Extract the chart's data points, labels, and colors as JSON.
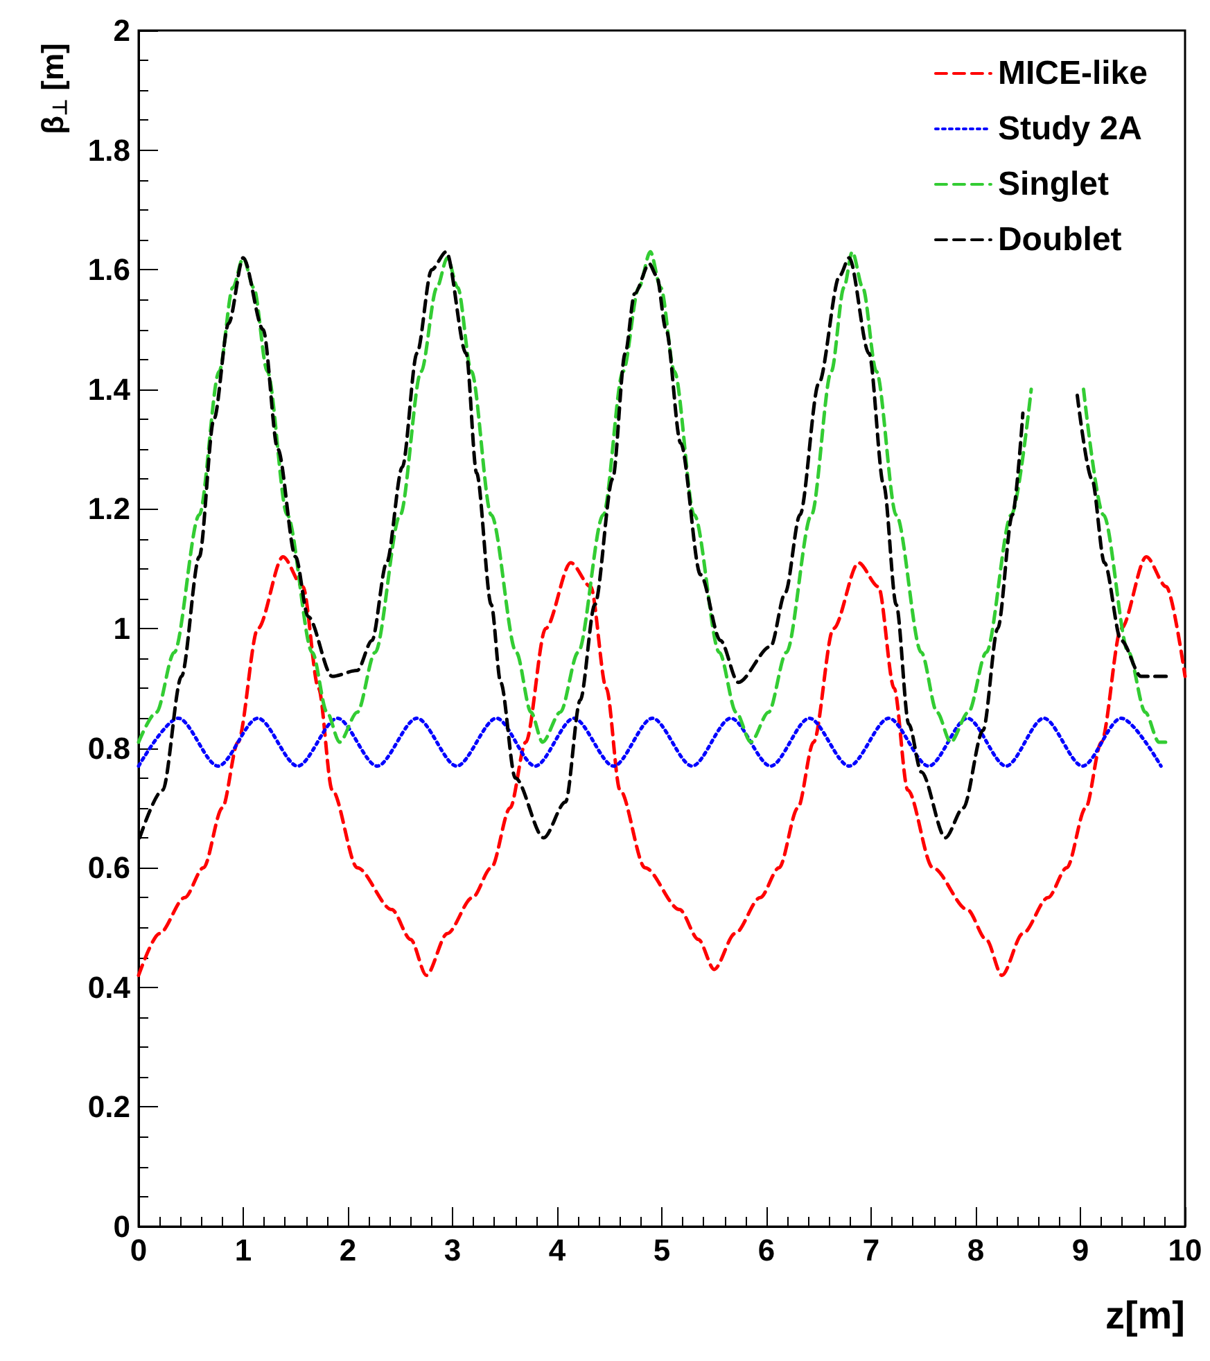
{
  "chart_data": {
    "type": "line",
    "xlabel": "z[m]",
    "ylabel": "β$_{⊥}$ [m]",
    "xlim": [
      0,
      10
    ],
    "xticks": [
      0,
      1,
      2,
      3,
      4,
      5,
      6,
      7,
      8,
      9,
      10
    ],
    "ylim": [
      0,
      2
    ],
    "yticks": [
      0,
      0.2,
      0.4,
      0.6,
      0.8,
      1,
      1.2,
      1.4,
      1.6,
      1.8,
      2
    ],
    "grid": false,
    "legend": "top right",
    "marker": "none",
    "series": [
      {
        "name": "MICE-like",
        "color": "#ff0000",
        "line_style": "dashed",
        "x": [
          0,
          0.2,
          0.44,
          0.62,
          0.8,
          0.95,
          1.14,
          1.38,
          1.57,
          1.72,
          1.85,
          2.09,
          2.42,
          2.6,
          2.75,
          2.95,
          3.19,
          3.37,
          3.55,
          3.7,
          3.89,
          4.13,
          4.32,
          4.47,
          4.6,
          4.84,
          5.17,
          5.35,
          5.5,
          5.7,
          5.94,
          6.12,
          6.3,
          6.45,
          6.64,
          6.88,
          7.07,
          7.22,
          7.35,
          7.59,
          7.92,
          8.1,
          8.25,
          8.45,
          8.69,
          8.87,
          9.05,
          9.2,
          9.39,
          9.63,
          9.82,
          10
        ],
        "values": [
          0.42,
          0.49,
          0.55,
          0.6,
          0.7,
          0.81,
          1.0,
          1.12,
          1.07,
          0.9,
          0.73,
          0.6,
          0.53,
          0.48,
          0.42,
          0.49,
          0.55,
          0.6,
          0.7,
          0.81,
          1.0,
          1.11,
          1.07,
          0.9,
          0.73,
          0.6,
          0.53,
          0.48,
          0.43,
          0.49,
          0.55,
          0.6,
          0.7,
          0.81,
          1.0,
          1.11,
          1.07,
          0.9,
          0.73,
          0.6,
          0.53,
          0.48,
          0.42,
          0.49,
          0.55,
          0.6,
          0.7,
          0.81,
          1.0,
          1.12,
          1.07,
          0.92
        ]
      },
      {
        "name": "Study 2A",
        "color": "#0000ff",
        "line_style": "dotted",
        "x": [
          0,
          0.38,
          0.76,
          1.14,
          1.52,
          1.9,
          2.28,
          2.66,
          3.04,
          3.42,
          3.79,
          4.16,
          4.54,
          4.91,
          5.29,
          5.66,
          6.04,
          6.41,
          6.79,
          7.17,
          7.55,
          7.92,
          8.29,
          8.65,
          9.02,
          9.39,
          9.77
        ],
        "values": [
          0.77,
          0.85,
          0.77,
          0.85,
          0.77,
          0.85,
          0.77,
          0.85,
          0.77,
          0.85,
          0.77,
          0.85,
          0.77,
          0.85,
          0.77,
          0.85,
          0.77,
          0.85,
          0.77,
          0.85,
          0.77,
          0.85,
          0.77,
          0.85,
          0.77,
          0.85,
          0.77
        ]
      },
      {
        "name": "Singlet",
        "color": "#33cc33",
        "line_style": "dashed",
        "x": [
          0,
          0.17,
          0.34,
          0.58,
          0.77,
          0.9,
          1.0,
          1.1,
          1.23,
          1.42,
          1.66,
          1.8,
          1.92,
          2.09,
          2.26,
          2.5,
          2.7,
          2.85,
          2.95,
          3.05,
          3.18,
          3.37,
          3.61,
          3.75,
          3.86,
          4.03,
          4.2,
          4.44,
          4.63,
          4.78,
          4.89,
          4.99,
          5.12,
          5.31,
          5.55,
          5.71,
          5.85,
          6.02,
          6.19,
          6.43,
          6.62,
          6.74,
          6.82,
          6.92,
          7.05,
          7.24,
          7.48,
          7.63,
          7.76,
          7.93,
          8.1,
          8.34,
          8.53,
          8.78,
          9.03,
          9.22,
          9.46,
          9.62,
          9.75,
          9.87
        ],
        "values": [
          0.81,
          0.86,
          0.96,
          1.19,
          1.43,
          1.57,
          1.62,
          1.57,
          1.43,
          1.19,
          0.96,
          0.86,
          0.81,
          0.86,
          0.96,
          1.19,
          1.43,
          1.57,
          1.62,
          1.57,
          1.43,
          1.19,
          0.96,
          0.86,
          0.81,
          0.86,
          0.96,
          1.19,
          1.43,
          1.57,
          1.63,
          1.57,
          1.43,
          1.19,
          0.96,
          0.86,
          0.81,
          0.86,
          0.96,
          1.19,
          1.43,
          1.57,
          1.63,
          1.57,
          1.43,
          1.19,
          0.96,
          0.86,
          0.81,
          0.86,
          0.96,
          1.19,
          1.4,
          null,
          1.4,
          1.19,
          0.96,
          0.86,
          0.81,
          0.81
        ]
      },
      {
        "name": "Doublet",
        "color": "#000000",
        "line_style": "dashed",
        "x": [
          0.01,
          0.23,
          0.41,
          0.58,
          0.72,
          0.86,
          1.0,
          1.19,
          1.33,
          1.5,
          1.62,
          1.85,
          2.09,
          2.23,
          2.37,
          2.52,
          2.66,
          2.8,
          2.94,
          3.13,
          3.23,
          3.37,
          3.46,
          3.6,
          3.87,
          4.08,
          4.22,
          4.36,
          4.53,
          4.65,
          4.74,
          4.88,
          4.95,
          5.04,
          5.18,
          5.37,
          5.56,
          5.73,
          6.04,
          6.18,
          6.32,
          6.5,
          6.7,
          6.79,
          6.98,
          7.12,
          7.24,
          7.36,
          7.48,
          7.71,
          7.88,
          8.07,
          8.21,
          8.35,
          8.45,
          8.7,
          8.97,
          9.11,
          9.23,
          9.39,
          9.58,
          9.87
        ],
        "values": [
          0.65,
          0.73,
          0.92,
          1.12,
          1.35,
          1.51,
          1.62,
          1.5,
          1.3,
          1.12,
          1.02,
          0.92,
          0.93,
          0.98,
          1.11,
          1.27,
          1.46,
          1.6,
          1.63,
          1.46,
          1.26,
          1.04,
          0.91,
          0.75,
          0.65,
          0.71,
          0.88,
          1.04,
          1.25,
          1.46,
          1.56,
          1.61,
          1.59,
          1.5,
          1.31,
          1.09,
          0.98,
          0.91,
          0.97,
          1.06,
          1.19,
          1.41,
          1.59,
          1.62,
          1.46,
          1.24,
          1.04,
          0.84,
          0.76,
          0.65,
          0.7,
          0.83,
          1.0,
          1.19,
          1.36,
          null,
          1.39,
          1.25,
          1.11,
          0.98,
          0.92,
          0.92
        ]
      }
    ]
  }
}
